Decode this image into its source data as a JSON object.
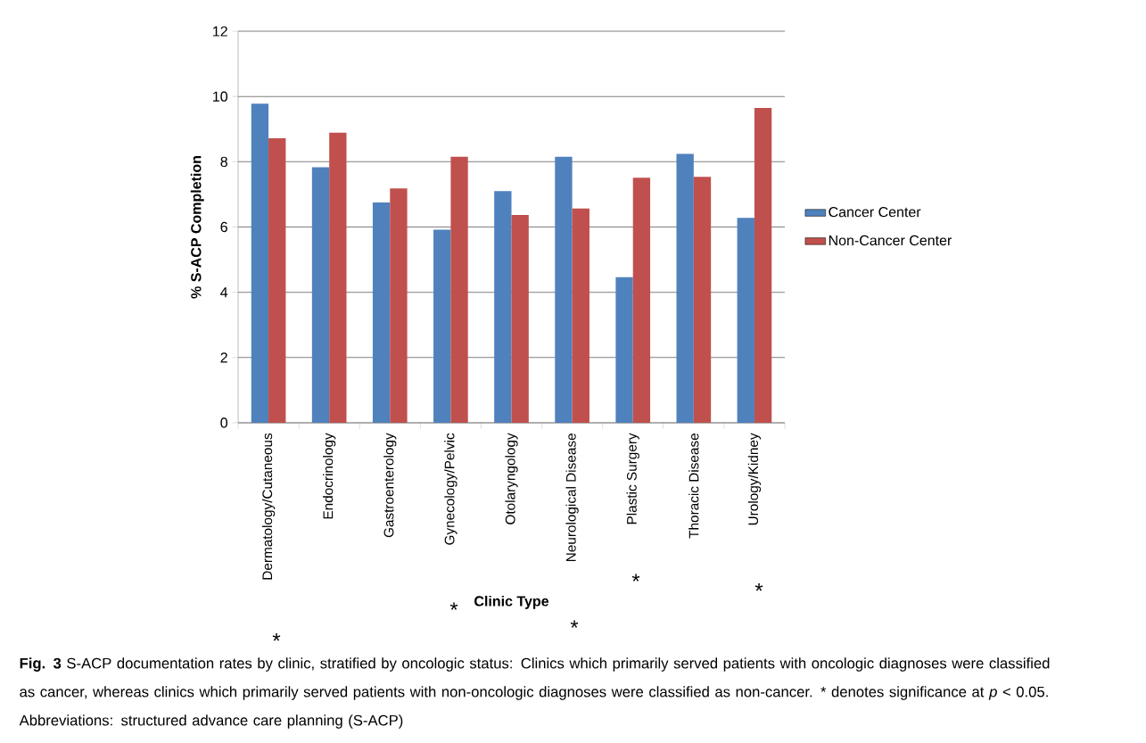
{
  "chart_data": {
    "type": "bar",
    "xlabel": "Clinic Type",
    "ylabel": "% S-ACP Completion",
    "categories": [
      "Dermatology/Cutaneous",
      "Endocrinology",
      "Gastroenterology",
      "Gynecology/Pelvic",
      "Otolaryngology",
      "Neurological Disease",
      "Plastic Surgery",
      "Thoracic Disease",
      "Urology/Kidney"
    ],
    "series": [
      {
        "name": "Cancer Center",
        "color": "#4f81bd",
        "values": [
          9.78,
          7.83,
          6.75,
          5.92,
          7.1,
          8.15,
          4.46,
          8.24,
          6.28
        ]
      },
      {
        "name": "Non-Cancer Center",
        "color": "#c0504d",
        "values": [
          8.72,
          8.89,
          7.18,
          8.15,
          6.37,
          6.57,
          7.51,
          7.54,
          9.65
        ]
      }
    ],
    "ylim": [
      0,
      12
    ],
    "yticks": [
      0,
      2,
      4,
      6,
      8,
      10,
      12
    ],
    "grid": "y",
    "legend": "right",
    "annotations": [
      "*",
      "*",
      "*",
      "*",
      "*",
      "**Fig. 3** S-ACP documentation rates by clinic, stratified by oncologic status: Clinics which primarily served patients with oncologic diagnoses were classified as cancer, whereas clinics which primarily served patients with non-oncologic diagnoses were classified as non-cancer. * denotes significance at *p* < 0.05. Abbreviations: structured advance care planning (S-ACP)"
    ]
  }
}
